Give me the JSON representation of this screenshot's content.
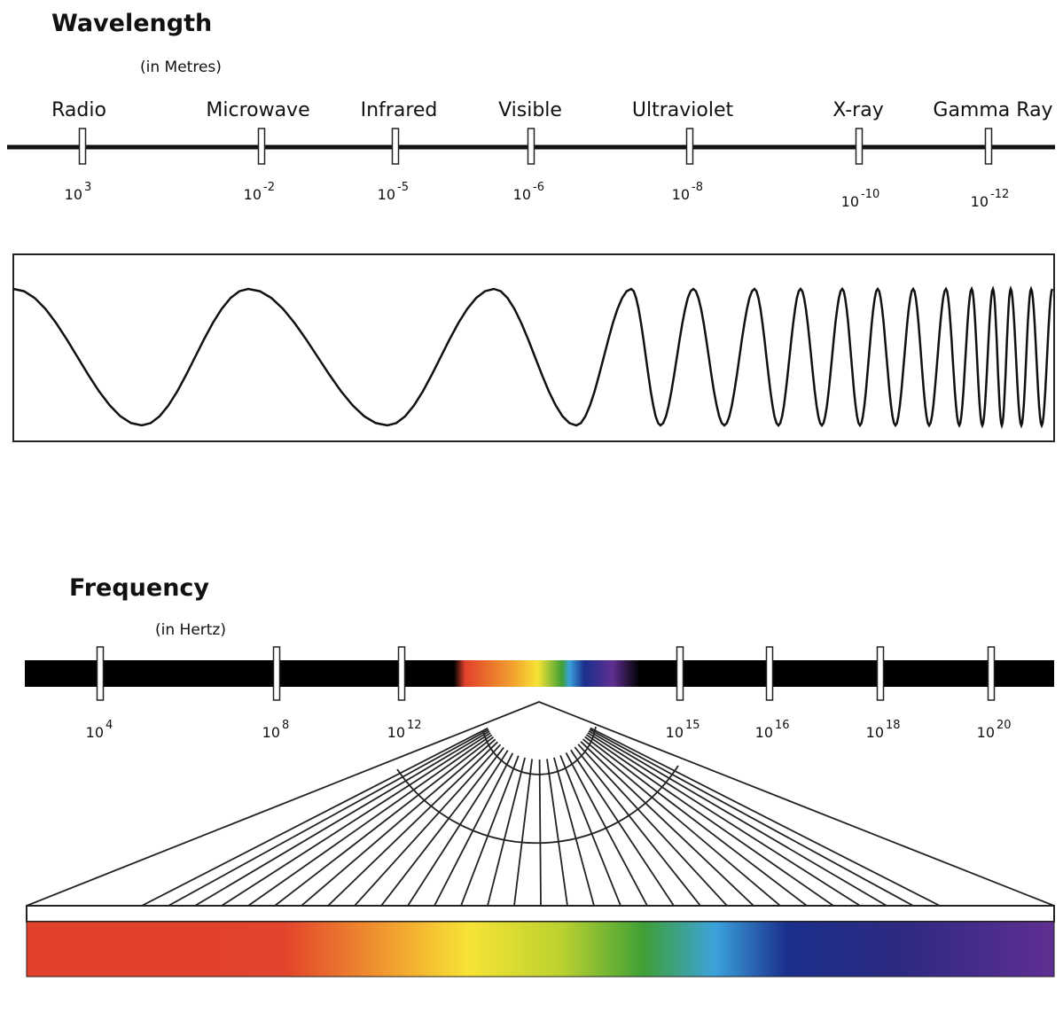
{
  "wavelength": {
    "title": "Wavelength",
    "unit": "(in Metres)",
    "bands": [
      {
        "name": "Radio",
        "base": "10",
        "exponent": "3"
      },
      {
        "name": "Microwave",
        "base": "10",
        "exponent": "-2"
      },
      {
        "name": "Infrared",
        "base": "10",
        "exponent": "-5"
      },
      {
        "name": "Visible",
        "base": "10",
        "exponent": "-6"
      },
      {
        "name": "Ultraviolet",
        "base": "10",
        "exponent": "-8"
      },
      {
        "name": "X-ray",
        "base": "10",
        "exponent": "-10"
      },
      {
        "name": "Gamma Ray",
        "base": "10",
        "exponent": "-12"
      }
    ]
  },
  "frequency": {
    "title": "Frequency",
    "unit": "(in Hertz)",
    "ticks": [
      {
        "base": "10",
        "exponent": "4"
      },
      {
        "base": "10",
        "exponent": "8"
      },
      {
        "base": "10",
        "exponent": "12"
      },
      {
        "base": "10",
        "exponent": "15"
      },
      {
        "base": "10",
        "exponent": "16"
      },
      {
        "base": "10",
        "exponent": "18"
      },
      {
        "base": "10",
        "exponent": "20"
      }
    ]
  }
}
